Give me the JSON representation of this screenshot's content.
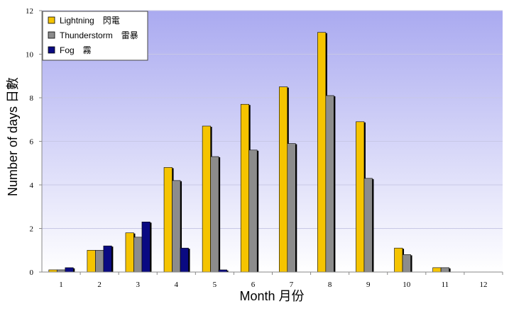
{
  "chart_data": {
    "type": "bar",
    "categories": [
      "1",
      "2",
      "3",
      "4",
      "5",
      "6",
      "7",
      "8",
      "9",
      "10",
      "11",
      "12"
    ],
    "series": [
      {
        "name": "Lightning　閃電",
        "color": "#f5c400",
        "values": [
          0.1,
          1.0,
          1.8,
          4.8,
          6.7,
          7.7,
          8.5,
          11.0,
          6.9,
          1.1,
          0.2,
          0
        ]
      },
      {
        "name": "Thunderstorm　雷暴",
        "color": "#8c8c8c",
        "values": [
          0.1,
          1.0,
          1.6,
          4.2,
          5.3,
          5.6,
          5.9,
          8.1,
          4.3,
          0.8,
          0.2,
          0.0
        ]
      },
      {
        "name": "Fog　霧",
        "color": "#0a0a82",
        "values": [
          0.2,
          1.2,
          2.3,
          1.1,
          0.1,
          0,
          0,
          0,
          0,
          0,
          0,
          0
        ]
      }
    ],
    "xlabel": "Month 月份",
    "ylabel": "Number of days 日數",
    "ylim": [
      0,
      12
    ],
    "yticks": [
      "0",
      "2",
      "4",
      "6",
      "8",
      "10",
      "12"
    ],
    "grid": true,
    "legend_position": "top-left",
    "background": {
      "top": "#aaaaf0",
      "bottom": "#ffffff"
    }
  }
}
